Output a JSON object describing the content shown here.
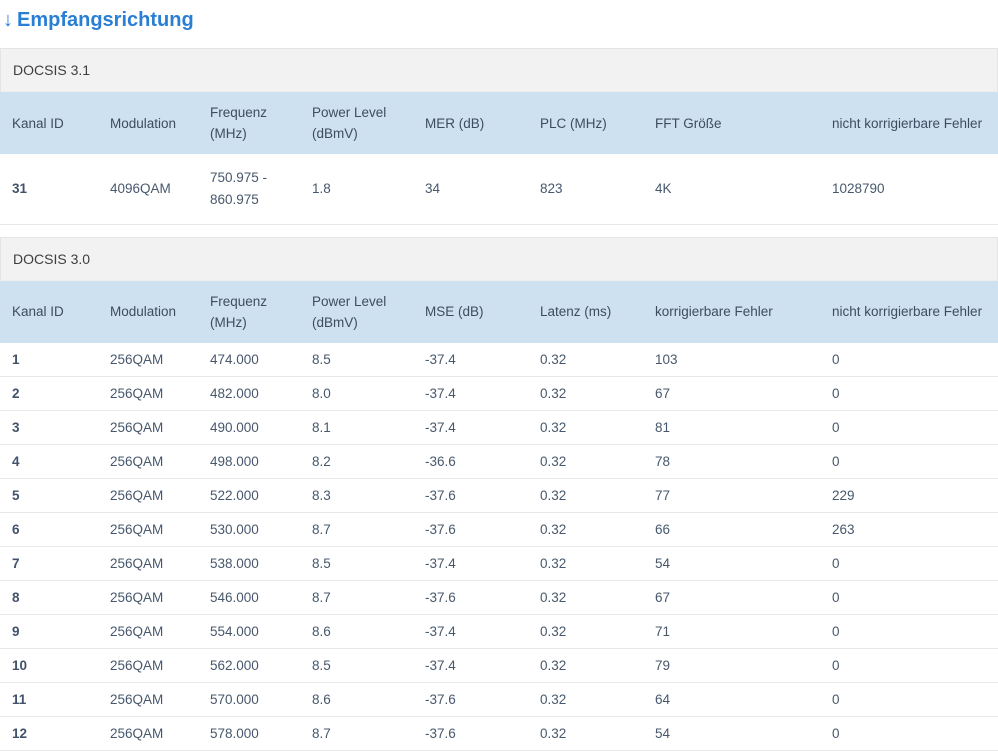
{
  "page": {
    "arrow": "↓",
    "title": "Empfangsrichtung"
  },
  "colors": {
    "accent": "#2a7fd4",
    "table_header_bg": "#cee1f0",
    "section_header_bg": "#f2f2f2",
    "text": "#47586c"
  },
  "tables": [
    {
      "section_title": "DOCSIS 3.1",
      "columns": [
        "Kanal ID",
        "Modulation",
        "Frequenz (MHz)",
        "Power Level (dBmV)",
        "MER (dB)",
        "PLC (MHz)",
        "FFT Größe",
        "nicht korrigierbare Fehler"
      ],
      "rows": [
        [
          "31",
          "4096QAM",
          "750.975 - 860.975",
          "1.8",
          "34",
          "823",
          "4K",
          "1028790"
        ]
      ]
    },
    {
      "section_title": "DOCSIS 3.0",
      "columns": [
        "Kanal ID",
        "Modulation",
        "Frequenz (MHz)",
        "Power Level (dBmV)",
        "MSE (dB)",
        "Latenz (ms)",
        "korrigierbare Fehler",
        "nicht korrigierbare Fehler"
      ],
      "rows": [
        [
          "1",
          "256QAM",
          "474.000",
          "8.5",
          "-37.4",
          "0.32",
          "103",
          "0"
        ],
        [
          "2",
          "256QAM",
          "482.000",
          "8.0",
          "-37.4",
          "0.32",
          "67",
          "0"
        ],
        [
          "3",
          "256QAM",
          "490.000",
          "8.1",
          "-37.4",
          "0.32",
          "81",
          "0"
        ],
        [
          "4",
          "256QAM",
          "498.000",
          "8.2",
          "-36.6",
          "0.32",
          "78",
          "0"
        ],
        [
          "5",
          "256QAM",
          "522.000",
          "8.3",
          "-37.6",
          "0.32",
          "77",
          "229"
        ],
        [
          "6",
          "256QAM",
          "530.000",
          "8.7",
          "-37.6",
          "0.32",
          "66",
          "263"
        ],
        [
          "7",
          "256QAM",
          "538.000",
          "8.5",
          "-37.4",
          "0.32",
          "54",
          "0"
        ],
        [
          "8",
          "256QAM",
          "546.000",
          "8.7",
          "-37.6",
          "0.32",
          "67",
          "0"
        ],
        [
          "9",
          "256QAM",
          "554.000",
          "8.6",
          "-37.4",
          "0.32",
          "71",
          "0"
        ],
        [
          "10",
          "256QAM",
          "562.000",
          "8.5",
          "-37.4",
          "0.32",
          "79",
          "0"
        ],
        [
          "11",
          "256QAM",
          "570.000",
          "8.6",
          "-37.6",
          "0.32",
          "64",
          "0"
        ],
        [
          "12",
          "256QAM",
          "578.000",
          "8.7",
          "-37.6",
          "0.32",
          "54",
          "0"
        ]
      ]
    }
  ]
}
